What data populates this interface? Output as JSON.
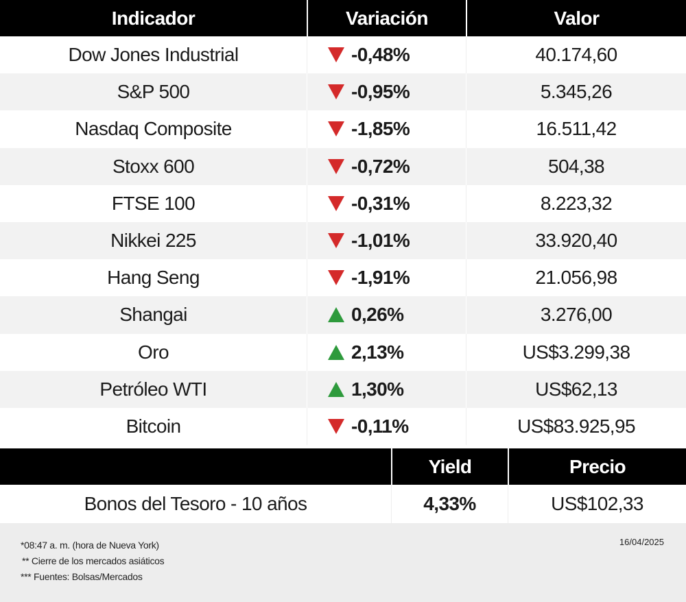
{
  "header": {
    "col1": "Indicador",
    "col2": "Variación",
    "col3": "Valor"
  },
  "rows": [
    {
      "name": "Dow Jones Industrial",
      "direction": "down",
      "change": "-0,48%",
      "value": "40.174,60"
    },
    {
      "name": "S&P 500",
      "direction": "down",
      "change": "-0,95%",
      "value": "5.345,26"
    },
    {
      "name": "Nasdaq Composite",
      "direction": "down",
      "change": "-1,85%",
      "value": "16.511,42"
    },
    {
      "name": "Stoxx 600",
      "direction": "down",
      "change": "-0,72%",
      "value": "504,38"
    },
    {
      "name": "FTSE 100",
      "direction": "down",
      "change": "-0,31%",
      "value": "8.223,32"
    },
    {
      "name": "Nikkei 225",
      "direction": "down",
      "change": "-1,01%",
      "value": "33.920,40"
    },
    {
      "name": "Hang Seng",
      "direction": "down",
      "change": "-1,91%",
      "value": "21.056,98"
    },
    {
      "name": "Shangai",
      "direction": "up",
      "change": "0,26%",
      "value": "3.276,00"
    },
    {
      "name": "Oro",
      "direction": "up",
      "change": "2,13%",
      "value": "US$3.299,38"
    },
    {
      "name": "Petróleo WTI",
      "direction": "up",
      "change": "1,30%",
      "value": "US$62,13"
    },
    {
      "name": "Bitcoin",
      "direction": "down",
      "change": "-0,11%",
      "value": "US$83.925,95"
    }
  ],
  "bonds": {
    "header_yield": "Yield",
    "header_price": "Precio",
    "name": "Bonos del Tesoro - 10 años",
    "yield": "4,33%",
    "price": "US$102,33"
  },
  "footer": {
    "note1": "*08:47 a. m. (hora de Nueva York)",
    "note2": "** Cierre de los mercados asiáticos",
    "note3": "*** Fuentes: Bolsas/Mercados",
    "date": "16/04/2025"
  },
  "colors": {
    "down": "#d42a2a",
    "up": "#2e9a3c",
    "header_bg": "#000000",
    "shaded_row": "#f2f2f2"
  }
}
